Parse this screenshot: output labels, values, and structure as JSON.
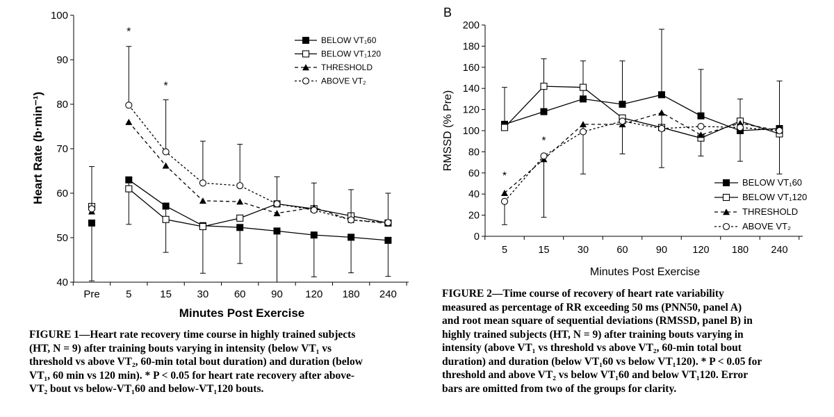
{
  "figure1": {
    "chart_data": {
      "type": "line",
      "ylabel": "Heart Rate (b·min⁻¹)",
      "xlabel": "Minutes Post Exercise",
      "categories": [
        "Pre",
        "5",
        "15",
        "30",
        "60",
        "90",
        "120",
        "180",
        "240"
      ],
      "ylim": [
        40,
        100
      ],
      "yticks": [
        "40",
        "50",
        "60",
        "70",
        "80",
        "90",
        "100"
      ],
      "legend_position": "top-right",
      "series": [
        {
          "name": "BELOW VT₁60",
          "marker": "square-filled",
          "line": "solid",
          "values": [
            53.3,
            63,
            57.1,
            52.7,
            52.3,
            51.5,
            50.6,
            50.1,
            49.4
          ],
          "err_up": [
            null,
            null,
            null,
            null,
            null,
            null,
            null,
            null,
            null
          ],
          "err_low": [
            40.3,
            53,
            46.7,
            42,
            44.2,
            40,
            41.2,
            42.1,
            41.3
          ]
        },
        {
          "name": "BELOW VT₁120",
          "marker": "square-open",
          "line": "solid",
          "values": [
            57,
            61,
            54.1,
            52.5,
            54.4,
            57.6,
            56.5,
            54.9,
            53.3
          ],
          "err_up": [
            null,
            null,
            null,
            null,
            null,
            null,
            null,
            null,
            null
          ],
          "err_low": [
            null,
            null,
            null,
            null,
            null,
            null,
            null,
            null,
            null
          ]
        },
        {
          "name": "THRESHOLD",
          "marker": "triangle-filled",
          "line": "dashed",
          "values": [
            55.9,
            76,
            66.2,
            58.3,
            58.1,
            55.5,
            56.8,
            54,
            53.2
          ],
          "err_up": [
            null,
            null,
            null,
            null,
            null,
            null,
            null,
            null,
            null
          ],
          "err_low": [
            null,
            null,
            null,
            null,
            null,
            null,
            null,
            null,
            null
          ]
        },
        {
          "name": "ABOVE VT₂",
          "marker": "circle-open",
          "line": "dotted",
          "values": [
            56.5,
            79.8,
            69.3,
            62.3,
            61.7,
            57.6,
            56.2,
            54,
            53.4
          ],
          "err_up": [
            66,
            93,
            81,
            71.7,
            71,
            63.7,
            62.3,
            60.8,
            60
          ],
          "err_low": [
            null,
            null,
            null,
            null,
            null,
            null,
            null,
            null,
            null
          ]
        }
      ],
      "annotations": [
        {
          "category": "5",
          "value": 96.5,
          "text": "*"
        },
        {
          "category": "15",
          "value": 84.3,
          "text": "*"
        }
      ]
    },
    "caption": [
      "FIGURE 1—Heart rate recovery time course in highly trained subjects",
      "(HT, N = 9) after training bouts varying in intensity (below VT₁ vs",
      "threshold vs above VT₂, 60-min total bout duration) and duration (below",
      "VT₁, 60 min vs 120 min). * P < 0.05 for heart rate recovery after above-",
      "VT₂ bout vs below-VT₁60 and below-VT₁120 bouts."
    ]
  },
  "figure2": {
    "panel_label": "B",
    "chart_data": {
      "type": "line",
      "ylabel": "RMSSD (% Pre)",
      "xlabel": "Minutes Post Exercise",
      "categories": [
        "5",
        "15",
        "30",
        "60",
        "90",
        "120",
        "180",
        "240"
      ],
      "ylim": [
        0,
        200
      ],
      "yticks": [
        "0",
        "20",
        "40",
        "60",
        "80",
        "100",
        "120",
        "140",
        "160",
        "180",
        "200"
      ],
      "legend_position": "bottom-right",
      "series": [
        {
          "name": "BELOW VT₁60",
          "marker": "square-filled",
          "line": "solid",
          "values": [
            106,
            118,
            130,
            125,
            134,
            114,
            100,
            102
          ],
          "err_up": [
            141,
            168,
            166,
            166,
            196,
            158,
            130,
            147
          ],
          "err_low": [
            null,
            null,
            null,
            null,
            null,
            null,
            null,
            null
          ]
        },
        {
          "name": "BELOW VT₁120",
          "marker": "square-open",
          "line": "solid",
          "values": [
            103,
            142,
            141,
            112,
            103,
            93,
            109,
            97
          ],
          "err_up": [
            null,
            null,
            null,
            null,
            null,
            null,
            null,
            null
          ],
          "err_low": [
            null,
            null,
            null,
            null,
            null,
            76,
            null,
            59
          ]
        },
        {
          "name": "THRESHOLD",
          "marker": "triangle-filled",
          "line": "dashed",
          "values": [
            41,
            73,
            106,
            106,
            117,
            96,
            107,
            100
          ],
          "err_up": [
            null,
            null,
            null,
            null,
            null,
            null,
            null,
            null
          ],
          "err_low": [
            null,
            18,
            59,
            78,
            65,
            null,
            71,
            null
          ]
        },
        {
          "name": "ABOVE VT₂",
          "marker": "circle-open",
          "line": "dotted",
          "values": [
            33,
            76,
            99,
            109,
            102,
            104,
            103,
            100
          ],
          "err_up": [
            null,
            null,
            null,
            null,
            null,
            null,
            null,
            null
          ],
          "err_low": [
            11,
            null,
            null,
            null,
            null,
            null,
            null,
            null
          ]
        }
      ],
      "annotations": [
        {
          "category": "5",
          "value": 58,
          "text": "*"
        },
        {
          "category": "15",
          "value": 91,
          "text": "*"
        }
      ]
    },
    "caption": [
      "FIGURE 2—Time course of recovery of heart rate variability",
      "measured as percentage of RR exceeding 50 ms (PNN50, panel A)",
      "and root mean square of sequential deviations (RMSSD, panel B) in",
      "highly trained subjects (HT, N = 9) after training bouts varying in",
      "intensity (above VT₁ vs threshold vs above VT₂, 60-min total bout",
      "duration) and duration (below VT₁60 vs below VT₁120). * P < 0.05 for",
      "threshold and above VT₂ vs below VT₁60 and below VT₁120. Error",
      "bars are omitted from two of the groups for clarity."
    ]
  }
}
